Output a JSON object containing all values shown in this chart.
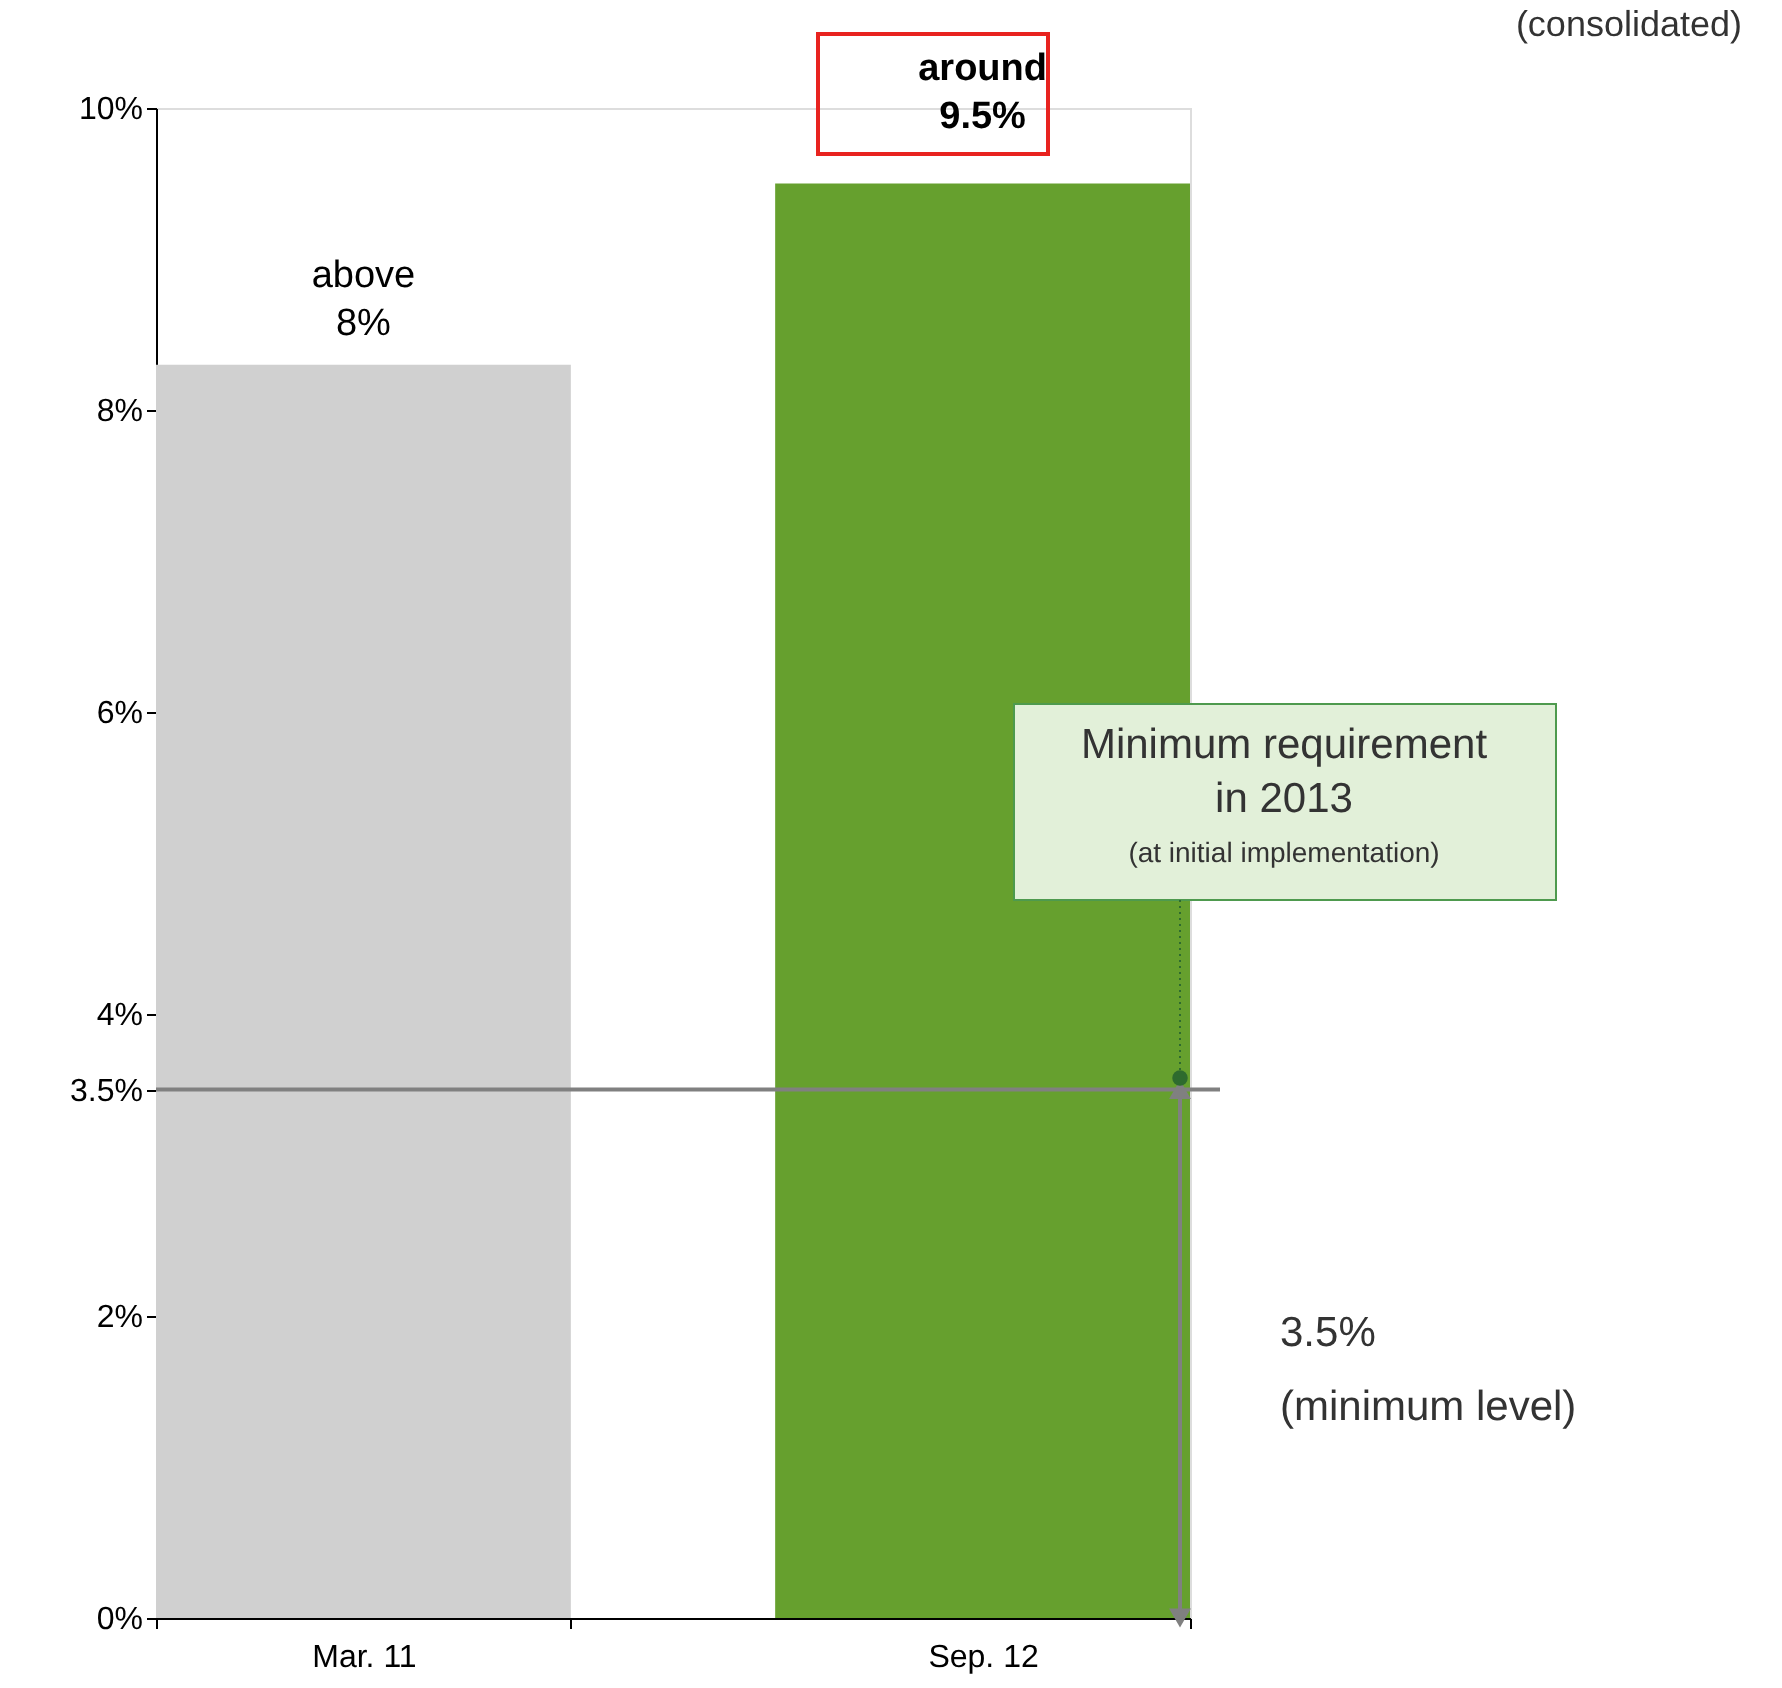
{
  "chart_data": {
    "type": "bar",
    "categories": [
      "Mar. 11",
      "Sep. 12"
    ],
    "values": [
      8.3,
      9.5
    ],
    "colors": [
      "#d0d0d0",
      "#66a02e"
    ],
    "ylim": [
      0,
      10
    ],
    "yticks": [
      {
        "value": 0,
        "label": "0%"
      },
      {
        "value": 2,
        "label": "2%"
      },
      {
        "value": 3.5,
        "label": "3.5%"
      },
      {
        "value": 4,
        "label": "4%"
      },
      {
        "value": 6,
        "label": "6%"
      },
      {
        "value": 8,
        "label": "8%"
      },
      {
        "value": 10,
        "label": "10%"
      }
    ],
    "grid": false,
    "legend": false,
    "ref_lines": [
      {
        "axis": "y",
        "value": 3.5,
        "color": "#808080"
      }
    ],
    "annotations": [
      {
        "text": "above\n8%",
        "x": "Mar. 11",
        "y": 8.3
      },
      {
        "text": "around\n9.5%",
        "x": "Sep. 12",
        "y": 9.5
      },
      "Minimum requirement\nin 2013",
      "(at initial implementation)",
      "3.5%\n(minimum level)",
      "(consolidated)"
    ]
  }
}
